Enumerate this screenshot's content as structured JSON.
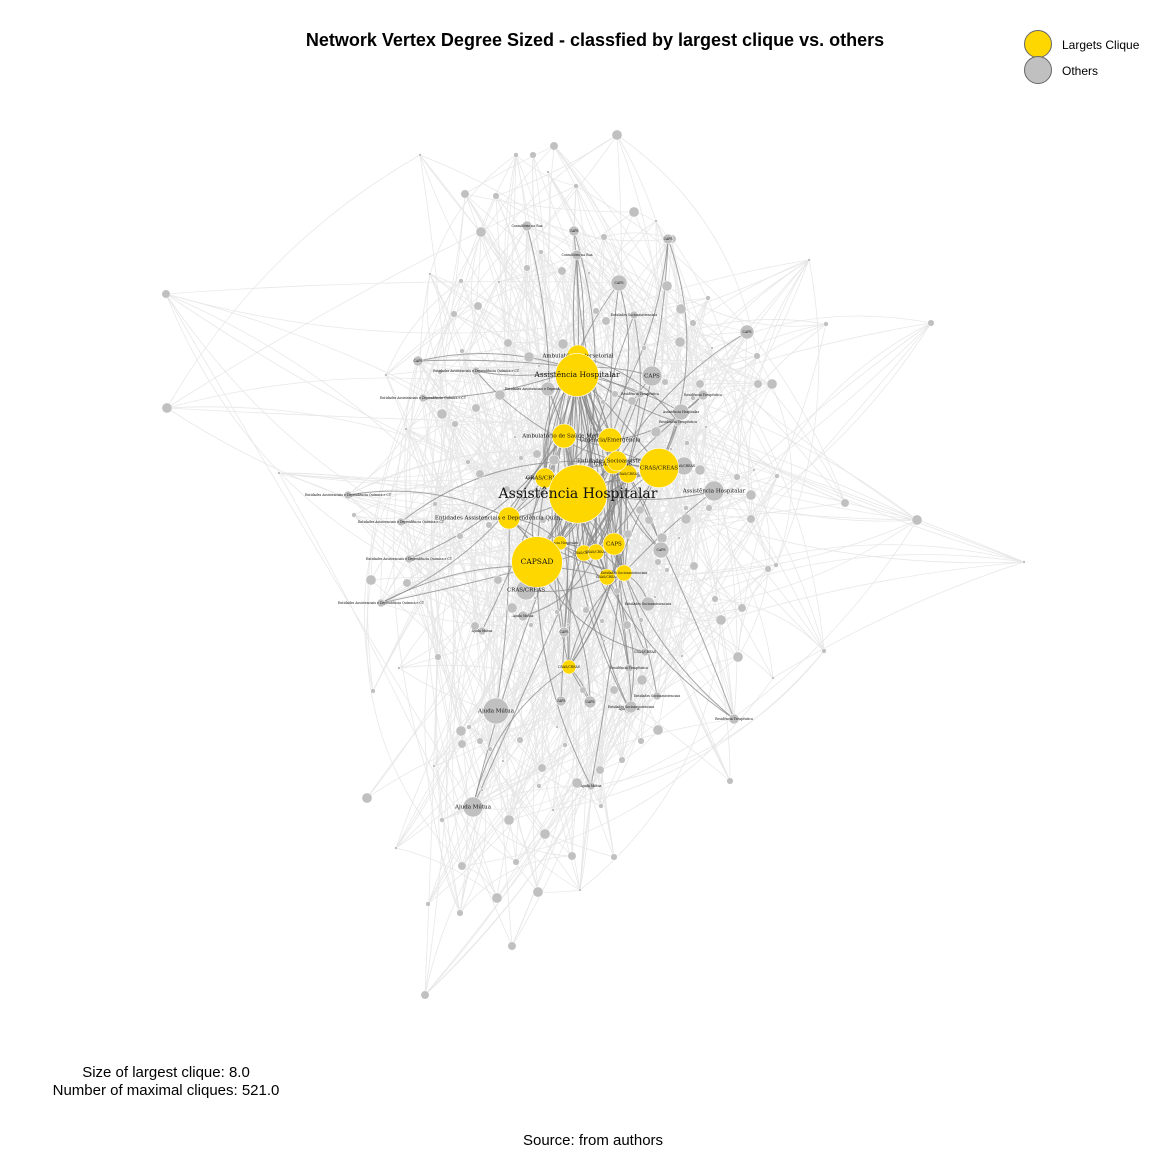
{
  "title": "Network Vertex Degree Sized - classfied by largest clique vs. others",
  "legend": [
    {
      "label": "Largets Clique",
      "color": "#FFD700"
    },
    {
      "label": "Others",
      "color": "#C0C0C0"
    }
  ],
  "stats": {
    "clique_size": "Size of largest clique: 8.0",
    "maximal_cliques": "Number of maximal cliques: 521.0"
  },
  "source": "Source: from authors",
  "colors": {
    "clique": "#FFD700",
    "other": "#C0C0C0",
    "edge_light": "#e6e6e6",
    "edge_dark": "#888888"
  },
  "nodes": [
    {
      "label": "Assistência Hospitalar",
      "group": "clique",
      "degree": 22
    },
    {
      "label": "CAPSAD",
      "group": "clique",
      "degree": 20
    },
    {
      "label": "CRAS/CREAS",
      "group": "clique",
      "degree": 17
    },
    {
      "label": "Assistência Hospitalar",
      "group": "clique",
      "degree": 18
    },
    {
      "label": "Ambulatório de Saúde Mental",
      "group": "clique",
      "degree": 12
    },
    {
      "label": "Urgência/Emergência",
      "group": "clique",
      "degree": 12
    },
    {
      "label": "Ambulatório Intersetorial",
      "group": "clique",
      "degree": 11
    },
    {
      "label": "Entidades Assistenciais e Dependência Química e CT",
      "group": "clique",
      "degree": 11
    },
    {
      "label": "CAPS",
      "group": "clique",
      "degree": 11
    },
    {
      "label": "CRAS/CREAS",
      "group": "clique",
      "degree": 10
    },
    {
      "label": "CRAS/CREAS",
      "group": "clique",
      "degree": 10
    },
    {
      "label": "Entidades Socioassistenciais",
      "group": "clique",
      "degree": 10
    },
    {
      "label": "CAPS",
      "group": "clique",
      "degree": 9
    },
    {
      "label": "CRAS/CREAS",
      "group": "clique",
      "degree": 9
    },
    {
      "label": "Ambulatório Intersetorial",
      "group": "clique",
      "degree": 9
    },
    {
      "label": "CRAS/CREAS",
      "group": "clique",
      "degree": 8
    },
    {
      "label": "CRAS/CREAS",
      "group": "clique",
      "degree": 8
    },
    {
      "label": "CRAS/CREAS",
      "group": "clique",
      "degree": 8
    },
    {
      "label": "Entidades Socioassistenciais",
      "group": "clique",
      "degree": 8
    },
    {
      "label": "Assistência Hospitalar",
      "group": "clique",
      "degree": 7
    },
    {
      "label": "UAPS",
      "group": "clique",
      "degree": 7
    },
    {
      "label": "CRAS/CREAS",
      "group": "clique",
      "degree": 7
    },
    {
      "label": "Ajuda Mútua",
      "group": "other",
      "degree": 13
    },
    {
      "label": "Ajuda Mútua",
      "group": "other",
      "degree": 10
    },
    {
      "label": "Assistência Hospitalar",
      "group": "other",
      "degree": 10
    },
    {
      "label": "CAPS",
      "group": "other",
      "degree": 10
    },
    {
      "label": "CRAS/CREAS",
      "group": "other",
      "degree": 10
    },
    {
      "label": "CRAS/CREAS",
      "group": "other",
      "degree": 9
    },
    {
      "label": "CRAS/CREAS",
      "group": "other",
      "degree": 8
    },
    {
      "label": "CAPS",
      "group": "other",
      "degree": 8
    },
    {
      "label": "CAPS",
      "group": "other",
      "degree": 8
    },
    {
      "label": "Assistência Hospitalar",
      "group": "other",
      "degree": 8
    },
    {
      "label": "Entidades Assistenciais e Dependência Química e CT",
      "group": "other",
      "degree": 7
    },
    {
      "label": "CAPS",
      "group": "other",
      "degree": 7
    },
    {
      "label": "UAPS",
      "group": "other",
      "degree": 6
    },
    {
      "label": "Entidades Socioassistenciais",
      "group": "other",
      "degree": 7
    },
    {
      "label": "Entidades Socioassistenciais",
      "group": "other",
      "degree": 6
    },
    {
      "label": "Residência Terapêutica",
      "group": "other",
      "degree": 5
    },
    {
      "label": "Residência Terapêutica",
      "group": "other",
      "degree": 5
    },
    {
      "label": "Ajuda Mútua",
      "group": "other",
      "degree": 5
    },
    {
      "label": "Ajuda Mútua",
      "group": "other",
      "degree": 5
    },
    {
      "label": "Consultório na Rua",
      "group": "other",
      "degree": 5
    },
    {
      "label": "Consultório na Rua",
      "group": "other",
      "degree": 5
    },
    {
      "label": "UAPS",
      "group": "other",
      "degree": 5
    },
    {
      "label": "UAPS",
      "group": "other",
      "degree": 5
    },
    {
      "label": "UAPS",
      "group": "other",
      "degree": 5
    },
    {
      "label": "CAPS",
      "group": "other",
      "degree": 5
    },
    {
      "label": "CAPS",
      "group": "other",
      "degree": 5
    },
    {
      "label": "Entidades Socioassistenciais",
      "group": "other",
      "degree": 4
    },
    {
      "label": "Residência Terapêutica",
      "group": "other",
      "degree": 4
    },
    {
      "label": "Entidades Assistenciais e Dependência Química e CT",
      "group": "other",
      "degree": 4
    },
    {
      "label": "Entidades Assistenciais e Dependência Química e CT",
      "group": "other",
      "degree": 4
    },
    {
      "label": "Entidades Assistenciais e Dependência Química e CT",
      "group": "other",
      "degree": 4
    },
    {
      "label": "Entidades Assistenciais e Dependência Química e CT",
      "group": "other",
      "degree": 4
    },
    {
      "label": "Entidades Assistenciais e Dependência Química e CT",
      "group": "other",
      "degree": 4
    },
    {
      "label": "Entidades Assistenciais e Dependência Química e CT",
      "group": "other",
      "degree": 4
    },
    {
      "label": "Residência Terapêutica",
      "group": "other",
      "degree": 4
    },
    {
      "label": "Residência Terapêutica",
      "group": "other",
      "degree": 4
    },
    {
      "label": "Entidades Socioassistenciais",
      "group": "other",
      "degree": 4
    },
    {
      "label": "CRAS/CREAS",
      "group": "other",
      "degree": 4
    },
    {
      "label": "Ajuda Mútua",
      "group": "other",
      "degree": 4
    },
    {
      "label": "Ajuda Mútua",
      "group": "other",
      "degree": 4
    }
  ]
}
